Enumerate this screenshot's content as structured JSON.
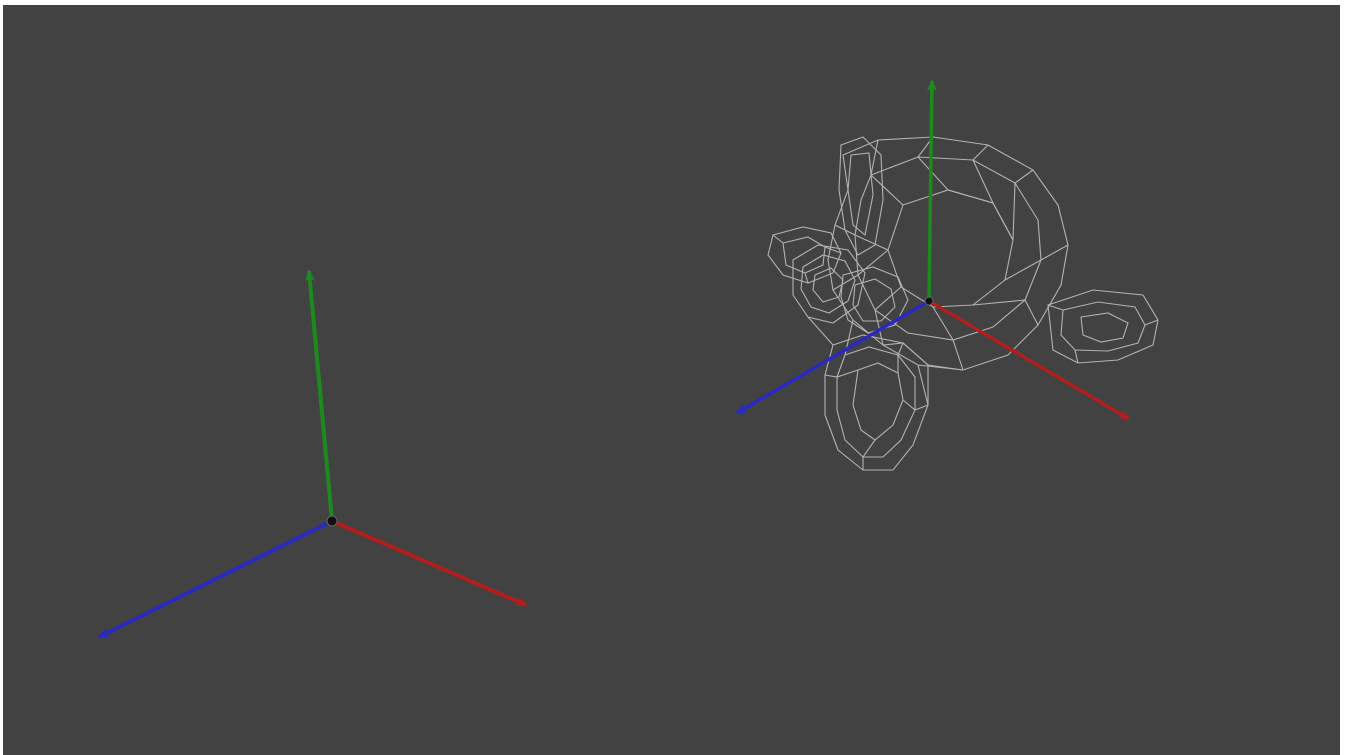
{
  "viewport": {
    "background": "#424242",
    "axis_colors": {
      "x": "#b01e1e",
      "y": "#1d8a1d",
      "z": "#2a2ac0"
    },
    "wire_color": "#d8d8d8"
  },
  "scene": {
    "objects": [
      {
        "kind": "axis-gizmo",
        "axes": [
          "x",
          "y",
          "z"
        ],
        "mesh": "none"
      },
      {
        "kind": "axis-gizmo",
        "axes": [
          "x",
          "y",
          "z"
        ],
        "mesh": "monkey-head-wireframe"
      }
    ]
  }
}
